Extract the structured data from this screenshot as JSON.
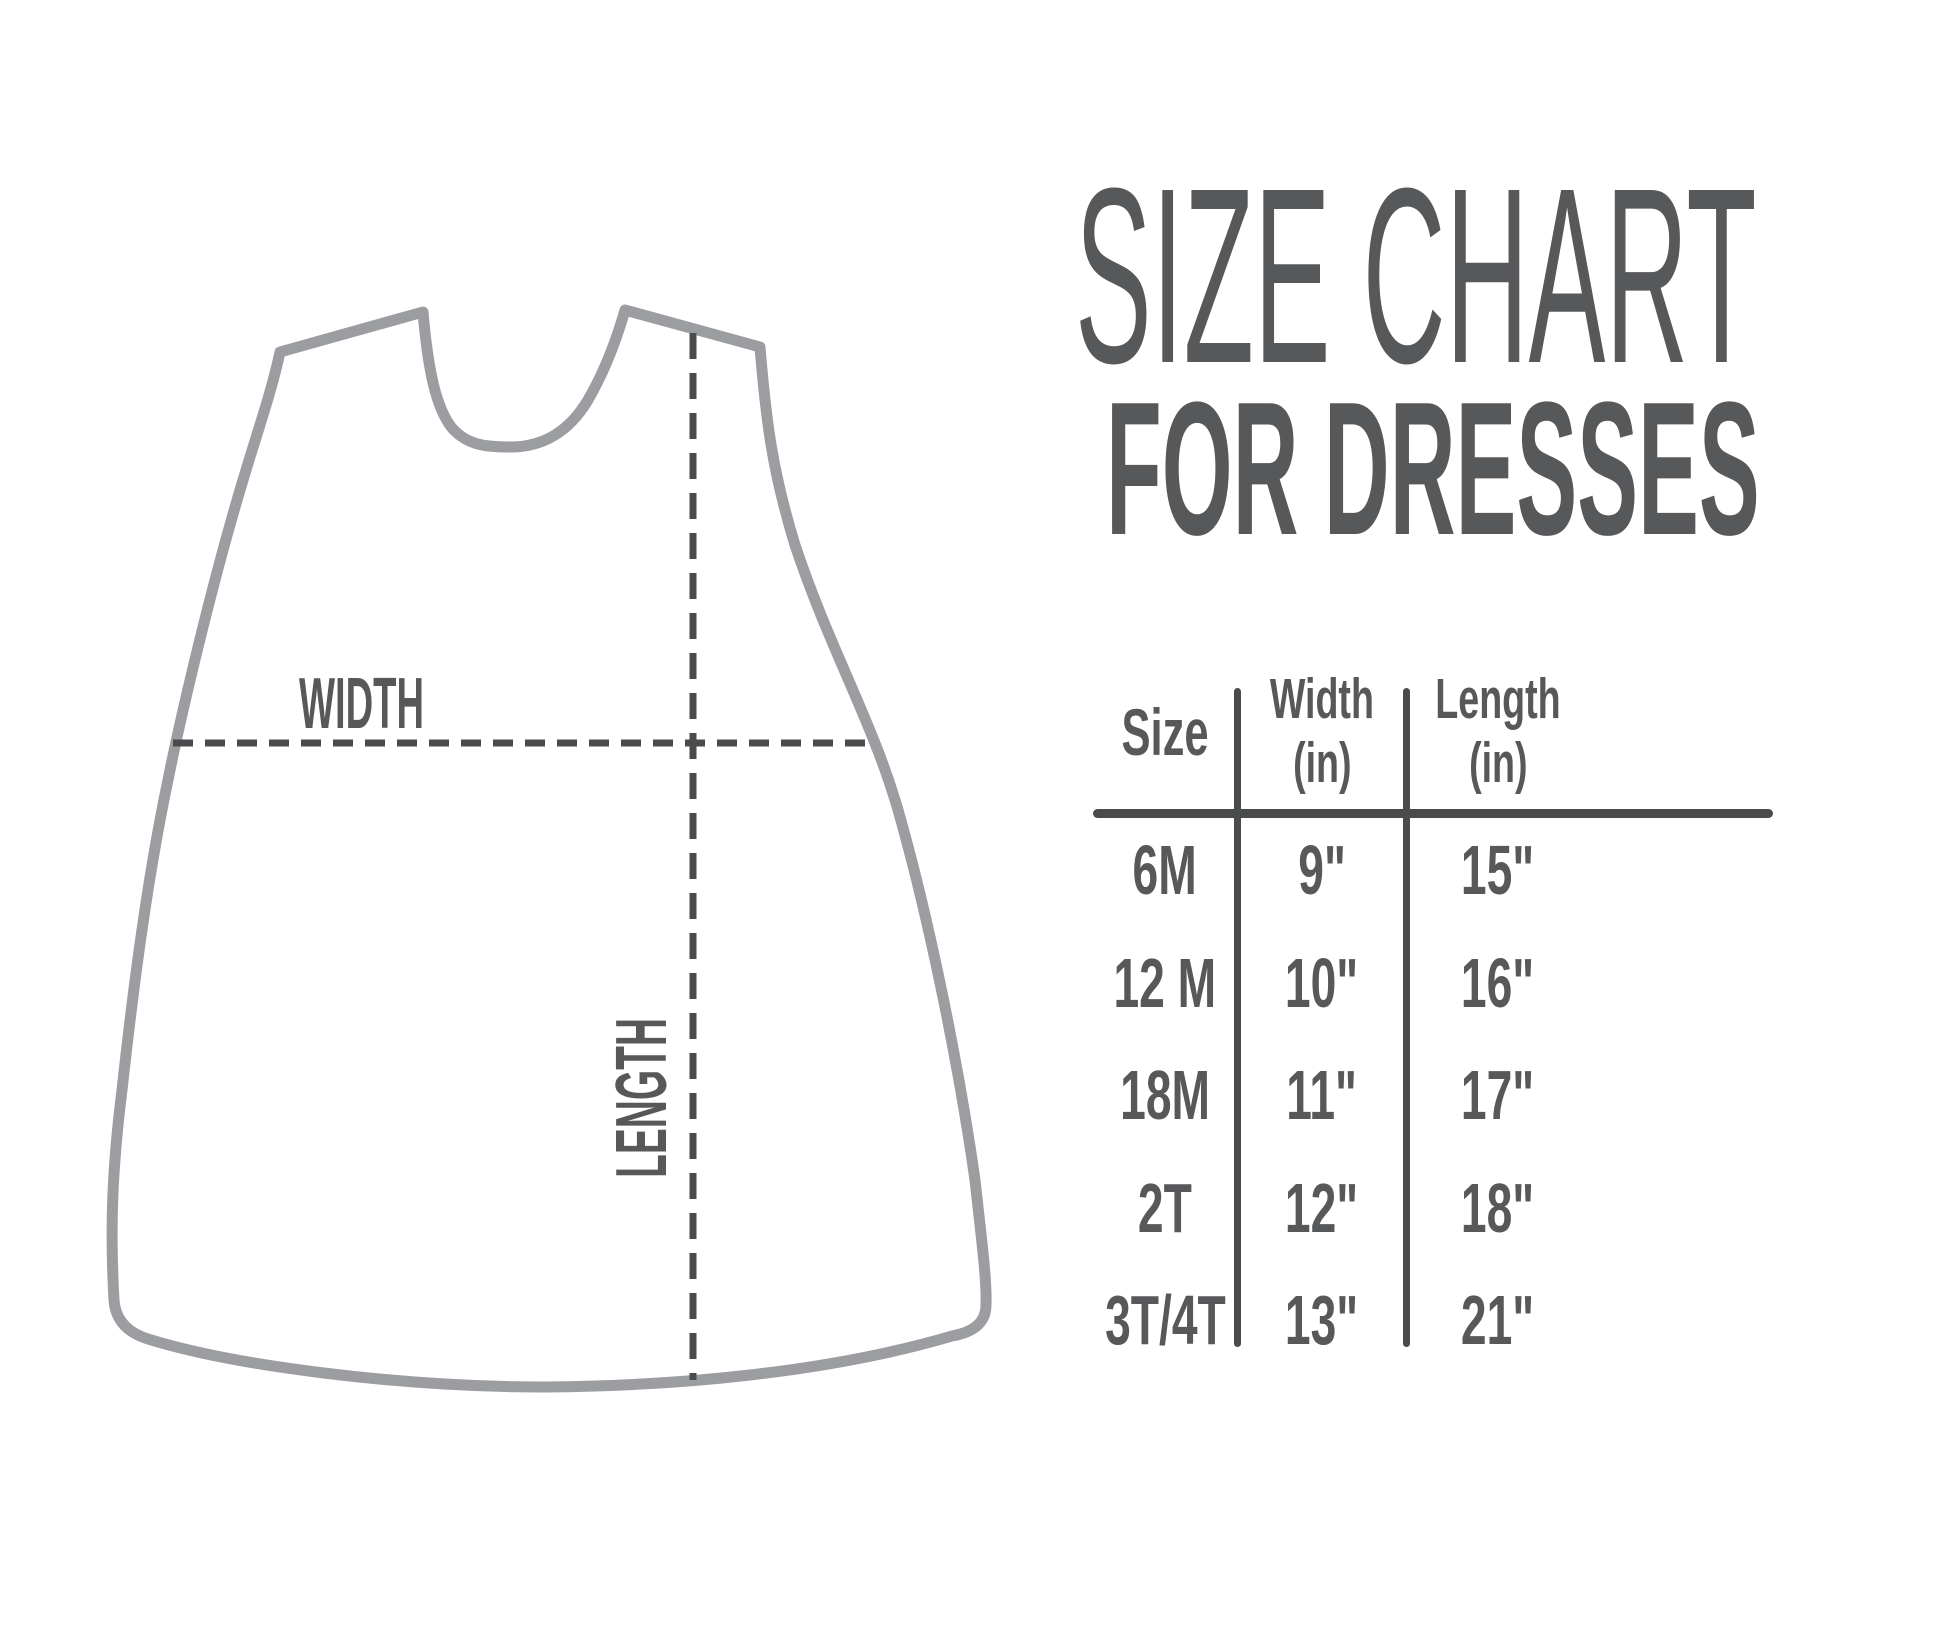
{
  "title": {
    "line1": "SIZE CHART",
    "line2": "FOR DRESSES"
  },
  "diagram": {
    "width_label": "WIDTH",
    "length_label": "LENGTH"
  },
  "table": {
    "headers": {
      "size": "Size",
      "width_line1": "Width",
      "width_line2": "(in)",
      "length_line1": "Length",
      "length_line2": "(in)"
    },
    "rows": [
      {
        "size": "6M",
        "width": "9\"",
        "length": "15\""
      },
      {
        "size": "12 M",
        "width": "10\"",
        "length": "16\""
      },
      {
        "size": "18M",
        "width": "11\"",
        "length": "17\""
      },
      {
        "size": "2T",
        "width": "12\"",
        "length": "18\""
      },
      {
        "size": "3T/4T",
        "width": "13\"",
        "length": "21\""
      }
    ]
  },
  "chart_data": {
    "type": "table",
    "title": "SIZE CHART FOR DRESSES",
    "columns": [
      "Size",
      "Width (in)",
      "Length (in)"
    ],
    "rows": [
      [
        "6M",
        "9\"",
        "15\""
      ],
      [
        "12 M",
        "10\"",
        "16\""
      ],
      [
        "18M",
        "11\"",
        "17\""
      ],
      [
        "2T",
        "12\"",
        "18\""
      ],
      [
        "3T/4T",
        "13\"",
        "21\""
      ]
    ]
  },
  "colors": {
    "background": "#ffffff",
    "text": "#57585a",
    "dress_outline": "#9b9da0",
    "dash_line": "#4a4b4d"
  }
}
